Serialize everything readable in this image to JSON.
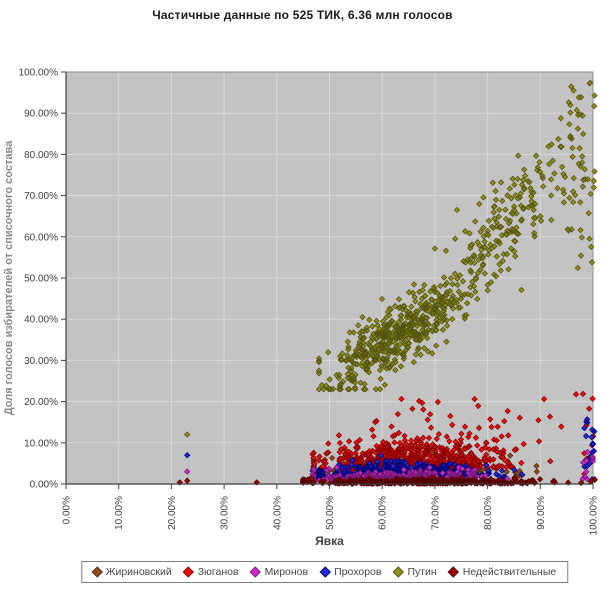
{
  "chart_data": {
    "type": "scatter",
    "title": "Частичные данные по 525 ТИК, 6.36 млн голосов",
    "xlabel": "Явка",
    "ylabel": "Доля голосов избирателей от списочного состава",
    "xlim": [
      0,
      100
    ],
    "ylim": [
      0,
      100
    ],
    "grid": true,
    "legend_position": "bottom",
    "plot_bg": "#c3c3c3",
    "grid_color": "#d8d8d8",
    "border_color": "#8c8c8c",
    "axis_color": "#3f3f3f",
    "tick_label_color": "#3f3f3f",
    "marker": "diamond",
    "seed": 20120304,
    "x_ticks": {
      "values": [
        0,
        10,
        20,
        30,
        40,
        50,
        60,
        70,
        80,
        90,
        100
      ],
      "labels": [
        "0.00%",
        "10.00%",
        "20.00%",
        "30.00%",
        "40.00%",
        "50.00%",
        "60.00%",
        "70.00%",
        "80.00%",
        "90.00%",
        "100.00%"
      ]
    },
    "y_ticks": {
      "values": [
        0,
        10,
        20,
        30,
        40,
        50,
        60,
        70,
        80,
        90,
        100
      ],
      "labels": [
        "0.00%",
        "10.00%",
        "20.00%",
        "30.00%",
        "40.00%",
        "50.00%",
        "60.00%",
        "70.00%",
        "80.00%",
        "90.00%",
        "100.00%"
      ]
    },
    "series": [
      {
        "id": "zhirinovsky",
        "name": "Жириновский",
        "legend_index": 0,
        "fill": "#8f4a1f",
        "stroke": "#5c2e10",
        "clusters": [
          {
            "n": 400,
            "x": {
              "dist": "normal",
              "mean": 65,
              "sd": 8.5,
              "min": 47,
              "max": 100
            },
            "y": {
              "model": "halfnormal",
              "base": 1.6,
              "sd": 2.2,
              "min": 1,
              "max": 10.5
            }
          }
        ],
        "points": [
          [
            46.5,
            1.5
          ]
        ]
      },
      {
        "id": "zyuganov",
        "name": "Зюганов",
        "legend_index": 1,
        "fill": "#e81010",
        "stroke": "#8f0000",
        "clusters": [
          {
            "n": 540,
            "x": {
              "dist": "normal",
              "mean": 66,
              "sd": 9,
              "min": 47,
              "max": 100
            },
            "y": {
              "model": "halfnormal",
              "base": 2.2,
              "sd": 3.6,
              "xslope": 0.02,
              "min": 1.2,
              "max": 18
            }
          },
          {
            "n": 22,
            "x": {
              "dist": "uniform",
              "min": 58,
              "max": 100
            },
            "y": {
              "model": "uniform",
              "min": 13,
              "max": 21
            }
          },
          {
            "n": 14,
            "x": {
              "dist": "uniform",
              "min": 98,
              "max": 100.3
            },
            "y": {
              "model": "uniform",
              "min": 2,
              "max": 22
            }
          }
        ],
        "points": [
          [
            46.8,
            7.2
          ],
          [
            96.8,
            21.8
          ]
        ]
      },
      {
        "id": "prokhorov",
        "name": "Прохоров",
        "legend_index": 3,
        "fill": "#2b2bd5",
        "stroke": "#00007a",
        "clusters": [
          {
            "n": 520,
            "x": {
              "dist": "normal",
              "mean": 64,
              "sd": 8,
              "min": 48,
              "max": 100
            },
            "y": {
              "model": "halfnormal",
              "base": 0.9,
              "sd": 2.0,
              "min": 0.8,
              "max": 9
            }
          },
          {
            "n": 18,
            "x": {
              "dist": "uniform",
              "min": 98,
              "max": 100.3
            },
            "y": {
              "model": "uniform",
              "min": 1,
              "max": 17
            }
          }
        ],
        "points": [
          [
            23,
            7
          ],
          [
            46.8,
            3.2
          ]
        ]
      },
      {
        "id": "mironov",
        "name": "Миронов",
        "legend_index": 2,
        "fill": "#cc2ecc",
        "stroke": "#7a187a",
        "clusters": [
          {
            "n": 320,
            "x": {
              "dist": "normal",
              "mean": 64,
              "sd": 8.5,
              "min": 47,
              "max": 100
            },
            "y": {
              "model": "halfnormal",
              "base": 0.4,
              "sd": 1.3,
              "min": 0.3,
              "max": 5
            }
          },
          {
            "n": 10,
            "x": {
              "dist": "uniform",
              "min": 98,
              "max": 100.3
            },
            "y": {
              "model": "uniform",
              "min": 1,
              "max": 8
            }
          }
        ],
        "points": [
          [
            23,
            3
          ],
          [
            46.8,
            2.4
          ]
        ]
      },
      {
        "id": "putin",
        "name": "Путин",
        "legend_index": 4,
        "fill": "#8f8f1f",
        "stroke": "#55550e",
        "clusters": [
          {
            "n": 520,
            "x": {
              "dist": "normal",
              "mean": 63,
              "sd": 6.5,
              "min": 48,
              "max": 80
            },
            "y": {
              "model": "linear",
              "slope": 0.8,
              "intercept": -14,
              "noise": 3.8,
              "min": 23,
              "max": 60
            }
          },
          {
            "n": 200,
            "x": {
              "dist": "normal",
              "mean": 84,
              "sd": 7,
              "min": 70,
              "max": 100.3
            },
            "y": {
              "model": "linear",
              "slope": 1.25,
              "intercept": -42,
              "noise": 6.5,
              "min": 30,
              "max": 100
            }
          },
          {
            "n": 42,
            "x": {
              "dist": "uniform",
              "min": 95,
              "max": 100.3
            },
            "y": {
              "model": "uniform",
              "min": 52,
              "max": 100
            }
          }
        ],
        "points": [
          [
            23,
            12
          ]
        ]
      },
      {
        "id": "invalid",
        "name": "Недействительные",
        "legend_index": 5,
        "fill": "#990000",
        "stroke": "#550000",
        "clusters": [
          {
            "n": 430,
            "x": {
              "dist": "normal",
              "mean": 68,
              "sd": 11,
              "min": 45,
              "max": 100.3
            },
            "y": {
              "model": "halfnormal",
              "base": 0.08,
              "sd": 0.5,
              "min": 0.05,
              "max": 1.6
            }
          }
        ],
        "points": [
          [
            21.6,
            0.4
          ],
          [
            36.2,
            0.4
          ],
          [
            23,
            0.8
          ]
        ]
      }
    ]
  }
}
